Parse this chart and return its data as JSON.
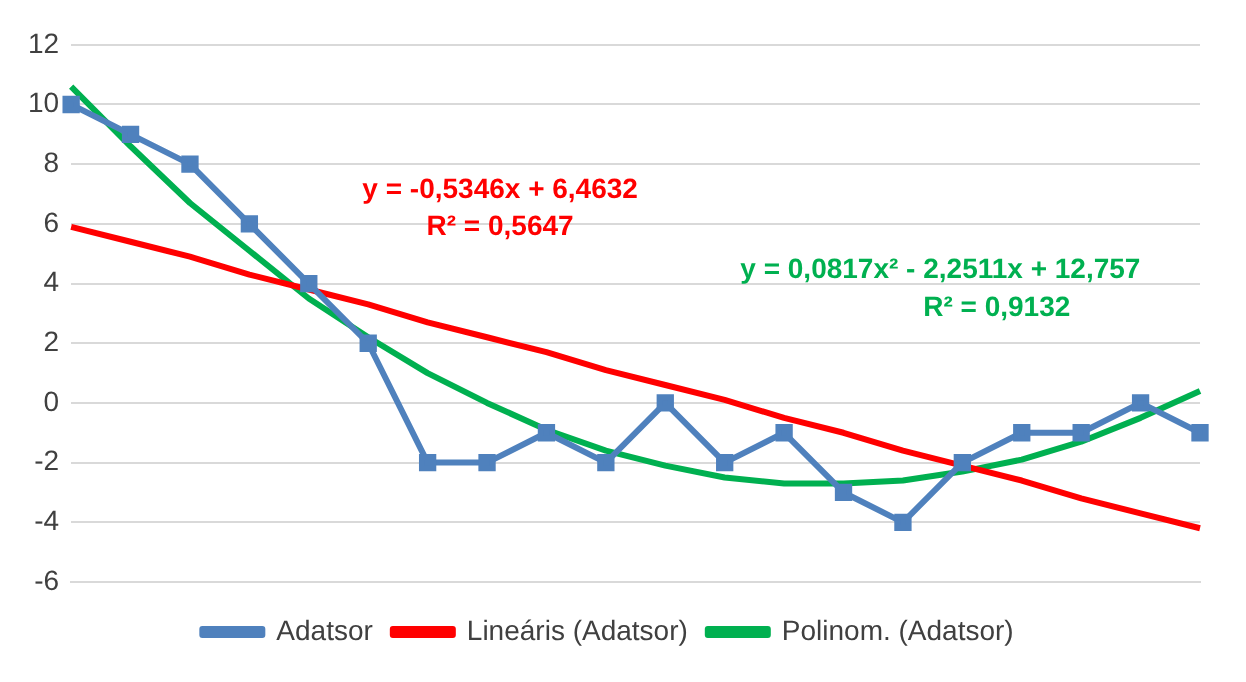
{
  "chart_data": {
    "type": "line",
    "categories": [
      null,
      null,
      null,
      null,
      null,
      null,
      null,
      null,
      null,
      null,
      null,
      null,
      null,
      null,
      null,
      null,
      null,
      null,
      null,
      null
    ],
    "series": [
      {
        "name": "Adatsor",
        "color": "#4f81bd",
        "marker": "square",
        "values": [
          10,
          9,
          8,
          6,
          4,
          2,
          -2,
          -2,
          -1,
          -2,
          0,
          -2,
          -1,
          -3,
          -4,
          -2,
          -1,
          -1,
          0,
          -1
        ]
      },
      {
        "name": "Lineáris (Adatsor)",
        "color": "#ff0000",
        "marker": "none",
        "values": [
          5.9,
          5.4,
          4.9,
          4.3,
          3.8,
          3.3,
          2.7,
          2.2,
          1.7,
          1.1,
          0.6,
          0.1,
          -0.5,
          -1.0,
          -1.6,
          -2.1,
          -2.6,
          -3.2,
          -3.7,
          -4.2
        ]
      },
      {
        "name": "Polinom. (Adatsor)",
        "color": "#00b050",
        "marker": "none",
        "values": [
          10.6,
          8.6,
          6.7,
          5.1,
          3.5,
          2.2,
          1.0,
          0.0,
          -0.9,
          -1.6,
          -2.1,
          -2.5,
          -2.7,
          -2.7,
          -2.6,
          -2.3,
          -1.9,
          -1.3,
          -0.5,
          0.4
        ]
      }
    ],
    "ylim": [
      -6,
      12
    ],
    "yticks": [
      -6,
      -4,
      -2,
      0,
      2,
      4,
      6,
      8,
      10,
      12
    ],
    "grid": "y",
    "legend": "bottom",
    "tick_labels": "y",
    "annotations": [
      "y = -0,5346x + 6,4632",
      "R² = 0,5647",
      "y = 0,0817x² - 2,2511x + 12,757",
      "R² = 0,9132"
    ]
  }
}
